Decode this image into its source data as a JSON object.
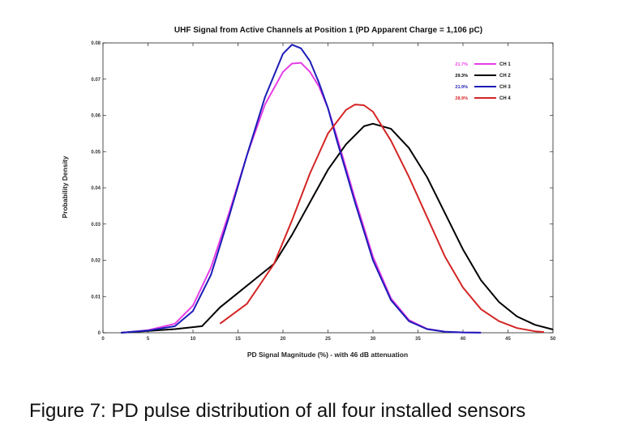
{
  "chart_data": {
    "type": "line",
    "title": "UHF Signal from Active Channels at Position 1 (PD Apparent Charge = 1,106 pC)",
    "xlabel": "PD Signal Magnitude (%) - with 46 dB attenuation",
    "ylabel": "Probability Density",
    "xlim": [
      0,
      50
    ],
    "ylim": [
      0,
      0.08
    ],
    "x_ticks": [
      "0",
      "5",
      "10",
      "15",
      "20",
      "25",
      "30",
      "35",
      "40",
      "45",
      "50"
    ],
    "y_ticks": [
      "0",
      "0.01",
      "0.02",
      "0.03",
      "0.04",
      "0.05",
      "0.06",
      "0.07",
      "0.08"
    ],
    "grid": false,
    "legend_position": "top-right",
    "series": [
      {
        "name": "CH 1",
        "percent": "21.7%",
        "color": "#e63de6",
        "x": [
          2,
          5,
          8,
          10,
          12,
          14,
          16,
          18,
          20,
          21,
          22,
          23,
          24,
          25,
          26,
          28,
          30,
          32,
          34,
          36,
          38,
          40,
          42
        ],
        "y": [
          0,
          0.0007,
          0.0025,
          0.0075,
          0.018,
          0.033,
          0.049,
          0.063,
          0.072,
          0.0743,
          0.0745,
          0.072,
          0.068,
          0.062,
          0.054,
          0.037,
          0.021,
          0.0095,
          0.0035,
          0.0011,
          0.0003,
          0.0001,
          3e-05
        ]
      },
      {
        "name": "CH 2",
        "percent": "29.3%",
        "color": "#000000",
        "x": [
          2,
          5,
          8,
          11,
          13,
          15,
          17,
          19,
          21,
          23,
          25,
          27,
          29,
          30,
          32,
          34,
          36,
          38,
          40,
          42,
          44,
          46,
          48,
          50
        ],
        "y": [
          0,
          0.0005,
          0.001,
          0.0018,
          0.007,
          0.011,
          0.015,
          0.019,
          0.027,
          0.036,
          0.045,
          0.052,
          0.057,
          0.0577,
          0.0563,
          0.051,
          0.043,
          0.033,
          0.023,
          0.0145,
          0.0085,
          0.0045,
          0.0022,
          0.0009
        ]
      },
      {
        "name": "CH 3",
        "percent": "21.9%",
        "color": "#1c1cb8",
        "x": [
          2,
          5,
          8,
          10,
          12,
          14,
          16,
          18,
          20,
          21,
          22,
          23,
          24,
          25,
          26,
          28,
          30,
          32,
          34,
          36,
          38,
          40,
          42
        ],
        "y": [
          0,
          0.0006,
          0.0018,
          0.006,
          0.016,
          0.032,
          0.049,
          0.065,
          0.077,
          0.0795,
          0.0785,
          0.075,
          0.069,
          0.062,
          0.053,
          0.036,
          0.02,
          0.009,
          0.0032,
          0.001,
          0.0003,
          0.0001,
          3e-05
        ]
      },
      {
        "name": "CH 4",
        "percent": "28.9%",
        "color": "#d42424",
        "x": [
          13,
          16,
          19,
          21,
          23,
          25,
          27,
          28,
          29,
          30,
          32,
          34,
          36,
          38,
          40,
          42,
          44,
          46,
          48,
          49
        ],
        "y": [
          0.0025,
          0.008,
          0.019,
          0.031,
          0.044,
          0.055,
          0.0615,
          0.063,
          0.0628,
          0.061,
          0.053,
          0.043,
          0.032,
          0.021,
          0.0125,
          0.0065,
          0.0032,
          0.0013,
          0.0004,
          0.0002
        ]
      }
    ]
  },
  "caption": "Figure 7: PD pulse distribution of all four installed sensors"
}
